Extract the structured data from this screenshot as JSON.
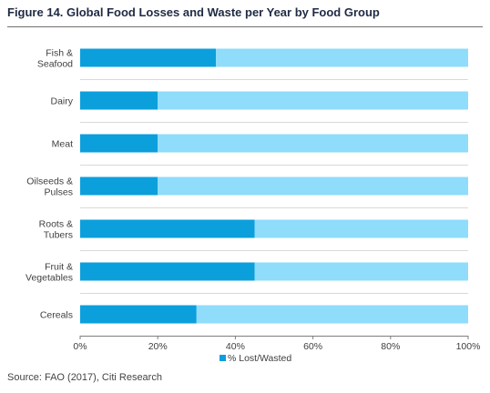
{
  "title": "Figure 14. Global Food Losses and Waste per Year by Food Group",
  "source": "Source: FAO (2017), Citi Research",
  "colors": {
    "lost": "#0b9fdc",
    "remainder": "#8fdcfb",
    "grid": "#d9d9d9",
    "axis": "#7f7f7f",
    "text": "#404040"
  },
  "chart_data": {
    "type": "bar",
    "orientation": "horizontal",
    "stacked": true,
    "categories": [
      [
        "Fish &",
        "Seafood"
      ],
      [
        "Dairy"
      ],
      [
        "Meat"
      ],
      [
        "Oilseeds &",
        "Pulses"
      ],
      [
        "Roots &",
        "Tubers"
      ],
      [
        "Fruit &",
        "Vegetables"
      ],
      [
        "Cereals"
      ]
    ],
    "series": [
      {
        "name": "% Lost/Wasted",
        "values": [
          35,
          20,
          20,
          20,
          45,
          45,
          30
        ]
      },
      {
        "values": [
          65,
          80,
          80,
          80,
          55,
          55,
          70
        ]
      }
    ],
    "x_ticks": [
      "0%",
      "20%",
      "40%",
      "60%",
      "80%",
      "100%"
    ],
    "xlim": [
      0,
      100
    ],
    "grid": "horizontal-lines-between-categories",
    "legend": {
      "position": "bottom",
      "entries": [
        "% Lost/Wasted"
      ]
    }
  }
}
